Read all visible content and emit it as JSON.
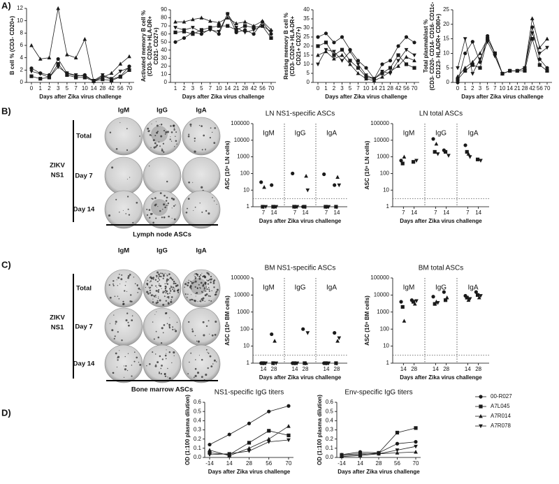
{
  "panels": [
    "A)",
    "B)",
    "C)",
    "D)"
  ],
  "wells": [
    {
      "columns": [
        "IgM",
        "IgG",
        "IgA"
      ],
      "rows": [
        "Total",
        "Day 7",
        "Day 14"
      ],
      "antigen": [
        "ZIKV",
        "NS1"
      ],
      "caption": "Lymph node ASCs"
    },
    {
      "columns": [
        "IgM",
        "IgG",
        "IgA"
      ],
      "rows": [
        "Total",
        "Day 7",
        "Day 14"
      ],
      "antigen": [
        "ZIKV",
        "NS1"
      ],
      "caption": "Bone marrow ASCs"
    }
  ],
  "chart_data": [
    {
      "type": "line",
      "color": "#1a1a1a",
      "ylabel": [
        "B cell % (CD3- CD20+)"
      ],
      "xlabel": "Days after Zika virus challenge",
      "categories": [
        "0",
        "1",
        "2",
        "3",
        "5",
        "7",
        "10",
        "14",
        "28",
        "42",
        "56",
        "70"
      ],
      "ylim": [
        0,
        12
      ],
      "yticks": [
        0,
        2,
        4,
        6,
        8,
        10,
        12
      ],
      "series": [
        {
          "marker": "circle",
          "values": [
            2.3,
            1.5,
            1.2,
            3.8,
            1.5,
            1,
            1.2,
            0.2,
            1,
            0.5,
            1,
            2.6
          ]
        },
        {
          "marker": "square",
          "values": [
            1,
            0.6,
            0.8,
            3,
            1.2,
            0.8,
            0.8,
            0.2,
            0.5,
            0.3,
            0.9,
            2
          ]
        },
        {
          "marker": "triangle-up",
          "values": [
            6,
            3.8,
            4,
            12,
            4.5,
            4,
            7,
            0.2,
            0.8,
            1.5,
            3,
            4.2
          ]
        },
        {
          "marker": "triangle-down",
          "values": [
            1.8,
            1.4,
            0.8,
            2.5,
            1.5,
            1.2,
            1,
            0.3,
            1.2,
            0.6,
            1.8,
            2.4
          ]
        }
      ]
    },
    {
      "type": "line",
      "color": "#1a1a1a",
      "ylabel": [
        "Activated memory B cell %",
        "(CD3- CD20+ HLA-DR+",
        "CD21- CD27+)"
      ],
      "xlabel": "Days after Zika virus challenge",
      "categories": [
        "1",
        "2",
        "3",
        "5",
        "7",
        "10",
        "14",
        "21",
        "28",
        "42",
        "56",
        "70"
      ],
      "ylim": [
        0,
        90
      ],
      "yticks": [
        0,
        10,
        20,
        30,
        40,
        50,
        60,
        70,
        80,
        90
      ],
      "series": [
        {
          "marker": "circle",
          "values": [
            50,
            55,
            62,
            60,
            66,
            60,
            85,
            62,
            65,
            60,
            75,
            60
          ]
        },
        {
          "marker": "square",
          "values": [
            62,
            63,
            60,
            65,
            68,
            70,
            70,
            65,
            70,
            68,
            70,
            55
          ]
        },
        {
          "marker": "triangle-up",
          "values": [
            75,
            75,
            78,
            80,
            76,
            74,
            80,
            73,
            75,
            70,
            76,
            65
          ]
        },
        {
          "marker": "triangle-down",
          "values": [
            68,
            65,
            68,
            62,
            65,
            63,
            85,
            68,
            62,
            65,
            70,
            63
          ]
        }
      ]
    },
    {
      "type": "line",
      "color": "#1a1a1a",
      "ylabel": [
        "Resting memory B cell %",
        "(CD3- CD20+ HLA-DR+",
        "CD21+ CD27+)"
      ],
      "xlabel": "Days after Zika virus challenge",
      "categories": [
        "0",
        "1",
        "2",
        "3",
        "5",
        "7",
        "10",
        "14",
        "21",
        "28",
        "42",
        "56",
        "70"
      ],
      "ylim": [
        0,
        40
      ],
      "yticks": [
        0,
        5,
        10,
        15,
        20,
        25,
        30,
        35,
        40
      ],
      "series": [
        {
          "marker": "circle",
          "values": [
            25,
            27,
            22,
            25,
            18,
            12,
            8,
            2,
            10,
            12,
            20,
            25,
            22
          ]
        },
        {
          "marker": "square",
          "values": [
            20,
            22,
            15,
            18,
            12,
            8,
            3,
            2,
            5,
            8,
            15,
            10,
            8
          ]
        },
        {
          "marker": "triangle-up",
          "values": [
            15,
            17,
            13,
            15,
            10,
            5,
            2,
            1,
            3,
            6,
            9,
            14,
            12
          ]
        },
        {
          "marker": "triangle-down",
          "values": [
            10,
            18,
            17,
            12,
            17,
            10,
            4,
            2,
            6,
            5,
            12,
            18,
            15
          ]
        }
      ]
    },
    {
      "type": "line",
      "color": "#1a1a1a",
      "ylabel": [
        "Total plasmablast %",
        "(CD3- CD20- CD14- CD16- CD11c-",
        "CD123- HLADR+ CD80+)"
      ],
      "xlabel": "Days after Zika virus challenge",
      "categories": [
        "0",
        "1",
        "2",
        "3",
        "5",
        "7",
        "10",
        "14",
        "21",
        "28",
        "42",
        "56",
        "70"
      ],
      "ylim": [
        0,
        25
      ],
      "yticks": [
        0,
        5,
        10,
        15,
        20,
        25
      ],
      "series": [
        {
          "marker": "circle",
          "values": [
            0,
            10,
            14,
            7,
            16,
            10,
            3,
            4,
            4,
            5,
            19,
            8,
            5
          ]
        },
        {
          "marker": "square",
          "values": [
            1,
            4,
            6,
            5,
            15,
            10,
            3,
            4,
            4,
            4,
            15,
            6,
            4
          ]
        },
        {
          "marker": "triangle-up",
          "values": [
            2,
            5,
            7,
            10,
            15,
            10,
            3,
            4,
            4,
            5,
            22,
            12,
            15
          ]
        },
        {
          "marker": "triangle-down",
          "values": [
            5,
            15,
            3,
            8,
            14,
            9,
            3,
            4,
            4,
            5,
            17,
            10,
            12
          ]
        }
      ]
    },
    {
      "type": "strip",
      "color": "#1a1a1a",
      "title": "LN NS1-specific ASCs",
      "ylabel": [
        "ASC (10⁶ LN cells)"
      ],
      "xlabel": "Days after Zika virus challenge",
      "groups": [
        "IgM",
        "IgG",
        "IgA"
      ],
      "categories": [
        "7",
        "14",
        "7",
        "14",
        "7",
        "14"
      ],
      "log": true,
      "ylim": [
        1,
        100000
      ],
      "yticks": [
        1,
        10,
        100,
        1000,
        10000,
        100000
      ],
      "threshold": 3,
      "series": [
        {
          "marker": "circle",
          "values": [
            30,
            20,
            100,
            1,
            90,
            20
          ]
        },
        {
          "marker": "square",
          "values": [
            1,
            1,
            1,
            1,
            1,
            1
          ]
        },
        {
          "marker": "triangle-up",
          "values": [
            15,
            1,
            1,
            70,
            1,
            60
          ]
        },
        {
          "marker": "triangle-down",
          "values": [
            1,
            1,
            1,
            10,
            1,
            20
          ]
        }
      ]
    },
    {
      "type": "strip",
      "color": "#1a1a1a",
      "title": "LN total ASCs",
      "ylabel": [
        "ASC (10⁶ LN cells)"
      ],
      "xlabel": "Days after Zika virus challenge",
      "groups": [
        "IgM",
        "IgG",
        "IgA"
      ],
      "categories": [
        "7",
        "14",
        "7",
        "14",
        "7",
        "14"
      ],
      "log": true,
      "ylim": [
        1,
        100000
      ],
      "yticks": [
        1,
        10,
        100,
        1000,
        10000,
        100000
      ],
      "threshold": 3,
      "series": [
        {
          "marker": "circle",
          "values": [
            600,
            null,
            12000,
            2500,
            5000,
            null
          ]
        },
        {
          "marker": "square",
          "values": [
            400,
            500,
            2000,
            2000,
            2000,
            700
          ]
        },
        {
          "marker": "triangle-up",
          "values": [
            1000,
            null,
            6000,
            null,
            1500,
            null
          ]
        },
        {
          "marker": "triangle-down",
          "values": [
            null,
            600,
            1500,
            1200,
            1000,
            600
          ]
        }
      ]
    },
    {
      "type": "strip",
      "color": "#1a1a1a",
      "title": "BM NS1-specific ASCs",
      "ylabel": [
        "ASC (10⁶ BM cells)"
      ],
      "xlabel": "Days after Zika virus challenge",
      "groups": [
        "IgM",
        "IgG",
        "IgA"
      ],
      "categories": [
        "14",
        "28",
        "14",
        "28",
        "14",
        "28"
      ],
      "log": true,
      "ylim": [
        1,
        100000
      ],
      "yticks": [
        1,
        10,
        100,
        1000,
        10000,
        100000
      ],
      "threshold": 3,
      "series": [
        {
          "marker": "circle",
          "values": [
            1,
            50,
            1,
            100,
            1,
            60
          ]
        },
        {
          "marker": "square",
          "values": [
            1,
            1,
            1,
            1,
            1,
            1
          ]
        },
        {
          "marker": "triangle-up",
          "values": [
            1,
            20,
            1,
            1,
            1,
            20
          ]
        },
        {
          "marker": "triangle-down",
          "values": [
            1,
            1,
            1,
            60,
            1,
            30
          ]
        }
      ]
    },
    {
      "type": "strip",
      "color": "#1a1a1a",
      "title": "BM total ASCs",
      "ylabel": [
        "ASC (10⁶ BM cells)"
      ],
      "xlabel": "Days after Zika virus challenge",
      "groups": [
        "IgM",
        "IgG",
        "IgA"
      ],
      "categories": [
        "14",
        "28",
        "14",
        "28",
        "14",
        "28"
      ],
      "log": true,
      "ylim": [
        1,
        100000
      ],
      "yticks": [
        1,
        10,
        100,
        1000,
        10000,
        100000
      ],
      "threshold": 3,
      "series": [
        {
          "marker": "circle",
          "values": [
            4000,
            5000,
            8000,
            15000,
            9000,
            15000
          ]
        },
        {
          "marker": "square",
          "values": [
            2000,
            4000,
            3000,
            5000,
            7000,
            10000
          ]
        },
        {
          "marker": "triangle-up",
          "values": [
            300,
            3000,
            4000,
            7000,
            5000,
            7000
          ]
        },
        {
          "marker": "triangle-down",
          "values": [
            null,
            4500,
            3500,
            null,
            6000,
            9000
          ]
        }
      ]
    },
    {
      "type": "line",
      "color": "#1a1a1a",
      "title": "NS1-specific IgG titers",
      "ylabel": [
        "OD (1:100 plasma dilution)"
      ],
      "xlabel": "Days after Zika virus challenge",
      "categories": [
        "-14",
        "14",
        "28",
        "56",
        "70"
      ],
      "ylim": [
        0,
        0.6
      ],
      "yticks": [
        {
          "value": 0,
          "label": "0.0"
        },
        0.1,
        0.2,
        0.3,
        0.4,
        0.5,
        0.6
      ],
      "series": [
        {
          "marker": "circle",
          "values": [
            0.14,
            0.25,
            0.37,
            0.5,
            0.56
          ]
        },
        {
          "marker": "square",
          "values": [
            0.05,
            0.03,
            0.16,
            0.29,
            0.24
          ]
        },
        {
          "marker": "triangle-up",
          "values": [
            0.08,
            0.02,
            0.1,
            0.2,
            0.34
          ]
        },
        {
          "marker": "triangle-down",
          "values": [
            0.03,
            0.04,
            0.07,
            0.17,
            0.19
          ]
        }
      ]
    },
    {
      "type": "line",
      "color": "#1a1a1a",
      "title": "Env-specific IgG titers",
      "ylabel": [
        "OD (1:100 plasma dilution)"
      ],
      "xlabel": "Days after Zika virus challenge",
      "categories": [
        "-14",
        "14",
        "28",
        "56",
        "70"
      ],
      "legend": "right",
      "ylim": [
        0,
        0.6
      ],
      "yticks": [
        {
          "value": 0,
          "label": "0.0"
        },
        0.1,
        0.2,
        0.3,
        0.4,
        0.5,
        0.6
      ],
      "series": [
        {
          "name": "00-R027",
          "marker": "circle",
          "values": [
            0.03,
            0.06,
            0.05,
            0.15,
            0.17
          ]
        },
        {
          "name": "A7L045",
          "marker": "square",
          "values": [
            0.02,
            0.03,
            0.05,
            0.27,
            0.32
          ]
        },
        {
          "name": "A7R014",
          "marker": "triangle-up",
          "values": [
            0.01,
            0.02,
            0.04,
            0.05,
            0.06
          ]
        },
        {
          "name": "A7R078",
          "marker": "triangle-down",
          "values": [
            0.03,
            0.04,
            0.04,
            0.08,
            0.12
          ]
        }
      ]
    }
  ]
}
